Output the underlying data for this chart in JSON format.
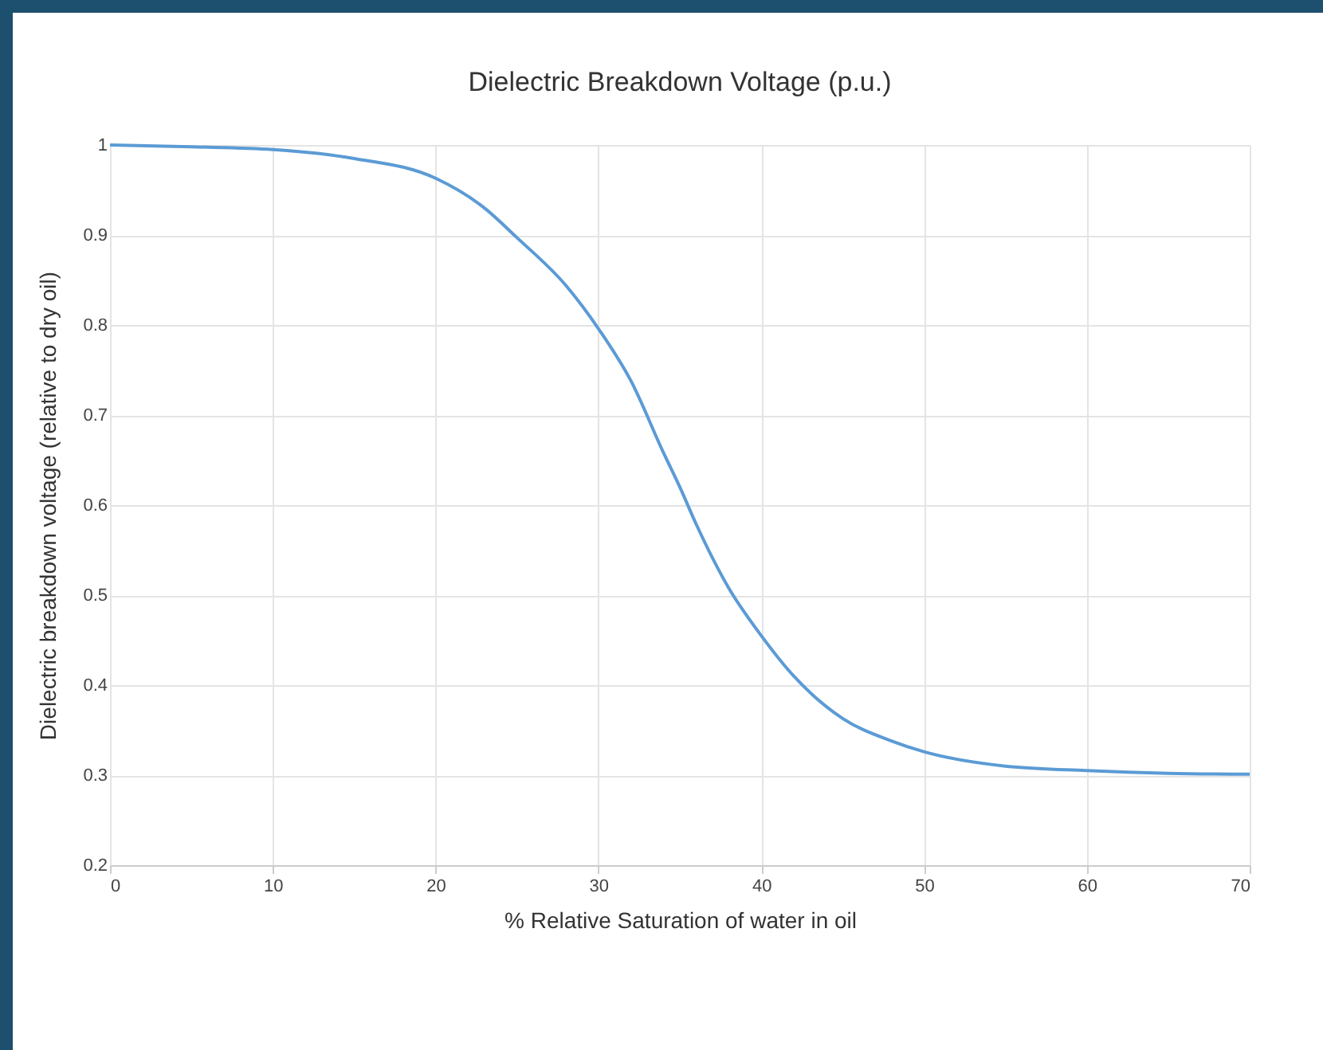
{
  "chart_data": {
    "type": "line",
    "title": "Dielectric Breakdown Voltage (p.u.)",
    "xlabel": "% Relative Saturation of water in oil",
    "ylabel": "Dielectric breakdown voltage (relative to dry oil)",
    "x": [
      0,
      5,
      10,
      15,
      20,
      23,
      25,
      28,
      30,
      32,
      34,
      35,
      36,
      38,
      40,
      42,
      45,
      48,
      50,
      55,
      60,
      65,
      70
    ],
    "series": [
      {
        "color": "#5b9bd5",
        "values": [
          1.0,
          0.998,
          0.995,
          0.985,
          0.963,
          0.93,
          0.897,
          0.844,
          0.796,
          0.738,
          0.658,
          0.62,
          0.579,
          0.508,
          0.455,
          0.41,
          0.363,
          0.338,
          0.326,
          0.31,
          0.305,
          0.302,
          0.301
        ]
      }
    ],
    "xlim": [
      0,
      70
    ],
    "xticks": [
      0,
      10,
      20,
      30,
      40,
      50,
      60,
      70
    ],
    "ylim": [
      0.2,
      1
    ],
    "yticks": [
      0.2,
      0.3,
      0.4,
      0.5,
      0.6,
      0.7,
      0.8,
      0.9,
      1
    ],
    "grid": true,
    "marker": "none",
    "line_style": "solid"
  }
}
